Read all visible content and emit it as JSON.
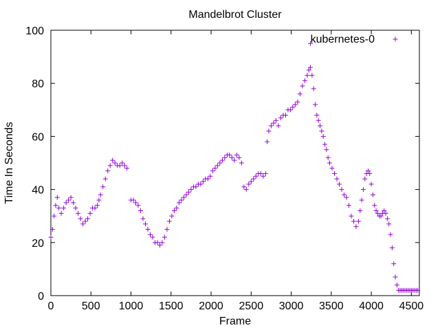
{
  "chart_data": {
    "type": "scatter",
    "title": "Mandelbrot Cluster",
    "xlabel": "Frame",
    "ylabel": "Time In Seconds",
    "xlim": [
      0,
      4600
    ],
    "ylim": [
      0,
      100
    ],
    "xticks": [
      0,
      500,
      1000,
      1500,
      2000,
      2500,
      3000,
      3500,
      4000,
      4500
    ],
    "yticks": [
      0,
      20,
      40,
      60,
      80,
      100
    ],
    "grid": false,
    "legend": "top-right",
    "marker": "plus",
    "color": "#9400d3",
    "series": [
      {
        "name": "kubernetes-0",
        "points": [
          [
            0,
            22
          ],
          [
            20,
            25
          ],
          [
            40,
            30
          ],
          [
            60,
            34
          ],
          [
            80,
            37
          ],
          [
            100,
            33
          ],
          [
            130,
            31
          ],
          [
            160,
            33
          ],
          [
            190,
            35
          ],
          [
            220,
            36
          ],
          [
            250,
            37
          ],
          [
            280,
            35
          ],
          [
            310,
            33
          ],
          [
            340,
            31
          ],
          [
            370,
            29
          ],
          [
            400,
            27
          ],
          [
            430,
            28
          ],
          [
            460,
            29
          ],
          [
            490,
            31
          ],
          [
            520,
            33
          ],
          [
            550,
            33
          ],
          [
            580,
            34
          ],
          [
            600,
            36
          ],
          [
            620,
            38
          ],
          [
            650,
            41
          ],
          [
            680,
            44
          ],
          [
            710,
            47
          ],
          [
            740,
            49
          ],
          [
            770,
            51
          ],
          [
            800,
            50
          ],
          [
            830,
            49
          ],
          [
            860,
            49
          ],
          [
            890,
            50
          ],
          [
            920,
            49
          ],
          [
            950,
            48
          ],
          [
            1000,
            36
          ],
          [
            1030,
            36
          ],
          [
            1060,
            35
          ],
          [
            1090,
            34
          ],
          [
            1120,
            32
          ],
          [
            1150,
            29
          ],
          [
            1180,
            27
          ],
          [
            1210,
            25
          ],
          [
            1240,
            23
          ],
          [
            1270,
            22
          ],
          [
            1300,
            20
          ],
          [
            1330,
            20
          ],
          [
            1360,
            19
          ],
          [
            1390,
            20
          ],
          [
            1420,
            22
          ],
          [
            1450,
            25
          ],
          [
            1480,
            28
          ],
          [
            1510,
            30
          ],
          [
            1540,
            32
          ],
          [
            1570,
            33
          ],
          [
            1600,
            35
          ],
          [
            1630,
            36
          ],
          [
            1660,
            37
          ],
          [
            1690,
            38
          ],
          [
            1720,
            39
          ],
          [
            1750,
            40
          ],
          [
            1780,
            41
          ],
          [
            1810,
            41
          ],
          [
            1840,
            42
          ],
          [
            1870,
            42
          ],
          [
            1900,
            43
          ],
          [
            1930,
            44
          ],
          [
            1960,
            44
          ],
          [
            1990,
            45
          ],
          [
            2020,
            47
          ],
          [
            2050,
            48
          ],
          [
            2080,
            49
          ],
          [
            2110,
            50
          ],
          [
            2140,
            51
          ],
          [
            2170,
            52
          ],
          [
            2200,
            53
          ],
          [
            2230,
            53
          ],
          [
            2260,
            52
          ],
          [
            2290,
            51
          ],
          [
            2320,
            53
          ],
          [
            2350,
            52
          ],
          [
            2380,
            50
          ],
          [
            2410,
            41
          ],
          [
            2440,
            40
          ],
          [
            2470,
            42
          ],
          [
            2500,
            43
          ],
          [
            2530,
            44
          ],
          [
            2560,
            45
          ],
          [
            2590,
            46
          ],
          [
            2620,
            46
          ],
          [
            2650,
            45
          ],
          [
            2680,
            46
          ],
          [
            2700,
            58
          ],
          [
            2720,
            62
          ],
          [
            2750,
            64
          ],
          [
            2780,
            65
          ],
          [
            2810,
            66
          ],
          [
            2840,
            64
          ],
          [
            2870,
            67
          ],
          [
            2900,
            68
          ],
          [
            2930,
            68
          ],
          [
            2960,
            70
          ],
          [
            2990,
            70
          ],
          [
            3020,
            71
          ],
          [
            3050,
            72
          ],
          [
            3080,
            73
          ],
          [
            3110,
            76
          ],
          [
            3140,
            79
          ],
          [
            3170,
            81
          ],
          [
            3200,
            83
          ],
          [
            3220,
            85
          ],
          [
            3240,
            86
          ],
          [
            3260,
            83
          ],
          [
            3280,
            78
          ],
          [
            3300,
            72
          ],
          [
            3320,
            68
          ],
          [
            3340,
            66
          ],
          [
            3360,
            64
          ],
          [
            3380,
            62
          ],
          [
            3400,
            60
          ],
          [
            3420,
            57
          ],
          [
            3440,
            55
          ],
          [
            3460,
            52
          ],
          [
            3480,
            50
          ],
          [
            3510,
            48
          ],
          [
            3540,
            46
          ],
          [
            3570,
            44
          ],
          [
            3600,
            42
          ],
          [
            3630,
            40
          ],
          [
            3660,
            38
          ],
          [
            3690,
            37
          ],
          [
            3720,
            34
          ],
          [
            3750,
            30
          ],
          [
            3780,
            28
          ],
          [
            3810,
            26
          ],
          [
            3840,
            28
          ],
          [
            3860,
            32
          ],
          [
            3880,
            36
          ],
          [
            3900,
            40
          ],
          [
            3920,
            44
          ],
          [
            3940,
            46
          ],
          [
            3960,
            47
          ],
          [
            3980,
            46
          ],
          [
            4000,
            42
          ],
          [
            4020,
            38
          ],
          [
            4040,
            34
          ],
          [
            4060,
            32
          ],
          [
            4080,
            31
          ],
          [
            4100,
            30
          ],
          [
            4120,
            30
          ],
          [
            4140,
            31
          ],
          [
            4160,
            32
          ],
          [
            4180,
            31
          ],
          [
            4200,
            29
          ],
          [
            4220,
            27
          ],
          [
            4240,
            23
          ],
          [
            4260,
            18
          ],
          [
            4280,
            12
          ],
          [
            4300,
            7
          ],
          [
            4320,
            4
          ],
          [
            4340,
            2
          ],
          [
            4360,
            2
          ],
          [
            4380,
            2
          ],
          [
            4400,
            2
          ],
          [
            4420,
            2
          ],
          [
            4440,
            2
          ],
          [
            4460,
            2
          ],
          [
            4480,
            2
          ],
          [
            4500,
            2
          ],
          [
            4520,
            2
          ],
          [
            4540,
            2
          ],
          [
            4560,
            2
          ],
          [
            4580,
            2
          ],
          [
            3240,
            95
          ]
        ]
      }
    ]
  }
}
